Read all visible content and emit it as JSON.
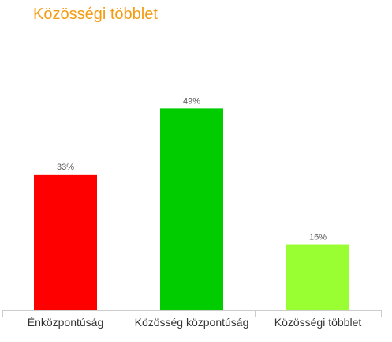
{
  "chart_data": {
    "type": "bar",
    "title": "Közösségi többlet",
    "categories": [
      "Énközpontúság",
      "Közösség központúság",
      "Közösségi többlet"
    ],
    "values": [
      33,
      49,
      16
    ],
    "value_suffix": "%",
    "colors": [
      "#ff0000",
      "#00cc00",
      "#99ff33"
    ],
    "title_color": "#f39c12",
    "ylim": [
      0,
      60
    ],
    "xlabel": "",
    "ylabel": "",
    "grid": false,
    "legend": "none"
  }
}
